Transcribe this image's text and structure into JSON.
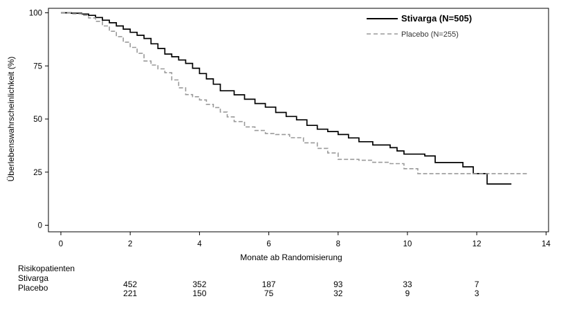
{
  "chart_data": {
    "type": "line",
    "title": "",
    "xlabel": "Monate ab Randomisierung",
    "ylabel": "Überlebenswahrscheinlichkeit (%)",
    "xlim": [
      0,
      14
    ],
    "ylim": [
      0,
      100
    ],
    "x_ticks": [
      "0",
      "2",
      "4",
      "6",
      "8",
      "10",
      "12",
      "14"
    ],
    "y_ticks": [
      "0",
      "25",
      "50",
      "75",
      "100"
    ],
    "grid": false,
    "legend_position": "top-right",
    "series": [
      {
        "name": "Stivarga (N=505)",
        "color": "#000000",
        "style": "solid",
        "points": [
          [
            0,
            100
          ],
          [
            0.3,
            99.8
          ],
          [
            0.6,
            99.4
          ],
          [
            0.8,
            98.8
          ],
          [
            1.0,
            97.8
          ],
          [
            1.2,
            96.5
          ],
          [
            1.4,
            95.3
          ],
          [
            1.6,
            93.8
          ],
          [
            1.8,
            92.3
          ],
          [
            2.0,
            90.8
          ],
          [
            2.2,
            89.4
          ],
          [
            2.4,
            87.9
          ],
          [
            2.6,
            85.4
          ],
          [
            2.8,
            83.2
          ],
          [
            3.0,
            80.6
          ],
          [
            3.2,
            79.3
          ],
          [
            3.4,
            77.8
          ],
          [
            3.6,
            76.2
          ],
          [
            3.8,
            73.9
          ],
          [
            4.0,
            71.4
          ],
          [
            4.2,
            68.9
          ],
          [
            4.4,
            66.4
          ],
          [
            4.6,
            63.3
          ],
          [
            5.0,
            61.4
          ],
          [
            5.3,
            59.3
          ],
          [
            5.6,
            57.3
          ],
          [
            5.9,
            55.6
          ],
          [
            6.2,
            53.1
          ],
          [
            6.5,
            51.2
          ],
          [
            6.8,
            49.6
          ],
          [
            7.1,
            47.0
          ],
          [
            7.4,
            45.2
          ],
          [
            7.7,
            44.1
          ],
          [
            8.0,
            42.7
          ],
          [
            8.3,
            41.1
          ],
          [
            8.6,
            39.3
          ],
          [
            9.0,
            37.8
          ],
          [
            9.5,
            36.5
          ],
          [
            9.7,
            35.0
          ],
          [
            9.9,
            33.5
          ],
          [
            10.5,
            32.6
          ],
          [
            10.8,
            29.5
          ],
          [
            11.6,
            27.5
          ],
          [
            11.9,
            24.3
          ],
          [
            12.3,
            19.4
          ],
          [
            13.0,
            19.4
          ]
        ]
      },
      {
        "name": "Placebo (N=255)",
        "color": "#999999",
        "style": "dashed",
        "points": [
          [
            0,
            100
          ],
          [
            0.3,
            99.5
          ],
          [
            0.6,
            98.8
          ],
          [
            0.8,
            97.6
          ],
          [
            1.0,
            96.0
          ],
          [
            1.2,
            93.8
          ],
          [
            1.4,
            91.3
          ],
          [
            1.6,
            88.8
          ],
          [
            1.8,
            86.2
          ],
          [
            2.0,
            83.7
          ],
          [
            2.2,
            80.9
          ],
          [
            2.4,
            77.3
          ],
          [
            2.6,
            75.4
          ],
          [
            2.8,
            73.6
          ],
          [
            3.0,
            71.8
          ],
          [
            3.2,
            68.4
          ],
          [
            3.4,
            64.7
          ],
          [
            3.6,
            61.5
          ],
          [
            3.8,
            60.5
          ],
          [
            4.0,
            59.0
          ],
          [
            4.2,
            56.9
          ],
          [
            4.4,
            55.4
          ],
          [
            4.6,
            53.3
          ],
          [
            4.8,
            51.0
          ],
          [
            5.0,
            48.8
          ],
          [
            5.3,
            46.3
          ],
          [
            5.6,
            44.6
          ],
          [
            5.9,
            43.2
          ],
          [
            6.2,
            42.7
          ],
          [
            6.6,
            41.2
          ],
          [
            7.0,
            38.8
          ],
          [
            7.4,
            36.2
          ],
          [
            7.7,
            34.0
          ],
          [
            8.0,
            31.0
          ],
          [
            8.6,
            30.6
          ],
          [
            9.0,
            29.6
          ],
          [
            9.5,
            29.0
          ],
          [
            9.9,
            26.6
          ],
          [
            10.3,
            24.3
          ],
          [
            12.0,
            24.3
          ],
          [
            13.5,
            24.3
          ]
        ]
      }
    ],
    "risk_table": {
      "title": "Risikopatienten",
      "times": [
        2,
        4,
        6,
        8,
        10,
        12
      ],
      "rows": [
        {
          "label": "Stivarga",
          "values": [
            "452",
            "352",
            "187",
            "93",
            "33",
            "7"
          ]
        },
        {
          "label": "Placebo",
          "values": [
            "221",
            "150",
            "75",
            "32",
            "9",
            "3"
          ]
        }
      ]
    }
  }
}
